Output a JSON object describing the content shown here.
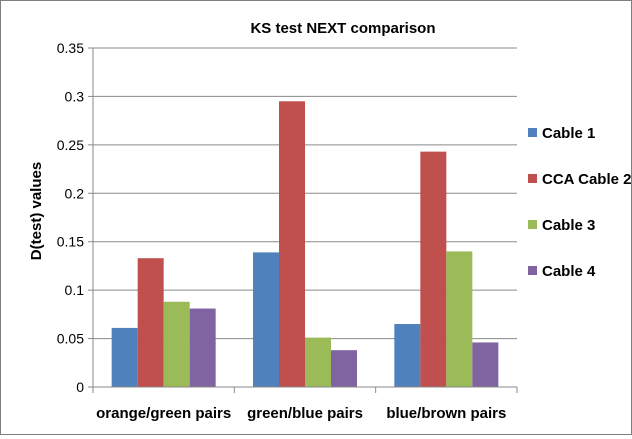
{
  "chart_data": {
    "type": "bar",
    "title": "KS test NEXT comparison",
    "ylabel": "D(test) values",
    "xlabel": "",
    "categories": [
      "orange/green pairs",
      "green/blue pairs",
      "blue/brown pairs"
    ],
    "series": [
      {
        "name": "Cable  1",
        "color": "#4f81bd",
        "values": [
          0.061,
          0.139,
          0.065
        ]
      },
      {
        "name": "CCA Cable 2",
        "color": "#c0504d",
        "values": [
          0.133,
          0.295,
          0.243
        ]
      },
      {
        "name": "Cable 3",
        "color": "#9bbb59",
        "values": [
          0.088,
          0.051,
          0.14
        ]
      },
      {
        "name": "Cable 4",
        "color": "#8064a2",
        "values": [
          0.081,
          0.038,
          0.046
        ]
      }
    ],
    "ylim": [
      0,
      0.35
    ],
    "yticks": [
      "0",
      "0.05",
      "0.1",
      "0.15",
      "0.2",
      "0.25",
      "0.3",
      "0.35"
    ],
    "grid": true,
    "legend_position": "right"
  }
}
